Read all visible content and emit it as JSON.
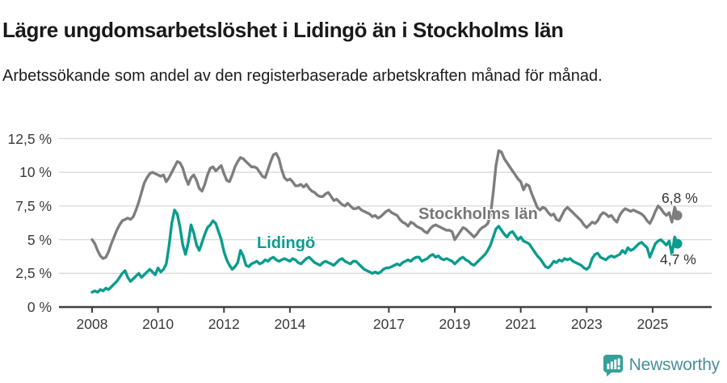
{
  "header": {
    "title": "Lägre ungdomsarbetslöshet i Lidingö än i Stockholms län",
    "subtitle": "Arbetssökande som andel av den registerbaserade arbetskraften månad för månad."
  },
  "branding": {
    "logo_text": "Newsworthy",
    "logo_icon": "bar-chart-speech-bubble",
    "icon_color": "#33a19a",
    "text_color": "#4a8e9c"
  },
  "chart_data": {
    "type": "line",
    "title": "Lägre ungdomsarbetslöshet i Lidingö än i Stockholms län",
    "xlabel": "",
    "ylabel": "",
    "grid": "horizontal",
    "legend_position": "inline-labels",
    "x_unit": "month",
    "x_start_year": 2008,
    "x_end": "2025-10",
    "ylim": [
      0,
      13.2
    ],
    "y_ticks": [
      {
        "label": "0 %",
        "value": 0
      },
      {
        "label": "2,5 %",
        "value": 2.5
      },
      {
        "label": "5 %",
        "value": 5
      },
      {
        "label": "7,5 %",
        "value": 7.5
      },
      {
        "label": "10 %",
        "value": 10
      },
      {
        "label": "12,5 %",
        "value": 12.5
      }
    ],
    "x_ticks": [
      {
        "label": "2008",
        "year": 2008
      },
      {
        "label": "2010",
        "year": 2010
      },
      {
        "label": "2012",
        "year": 2012
      },
      {
        "label": "2014",
        "year": 2014
      },
      {
        "label": "2017",
        "year": 2017
      },
      {
        "label": "2019",
        "year": 2019
      },
      {
        "label": "2021",
        "year": 2021
      },
      {
        "label": "2023",
        "year": 2023
      },
      {
        "label": "2025",
        "year": 2025
      }
    ],
    "gridline_color": "#d9d9d9",
    "axis_color": "#3f3f3f",
    "series": [
      {
        "name": "Stockholms län",
        "color": "#7d7e80",
        "end_label": "6,8 %",
        "end_value": 6.8,
        "values": [
          5.0,
          4.7,
          4.2,
          3.8,
          3.6,
          3.7,
          4.1,
          4.7,
          5.2,
          5.7,
          6.1,
          6.4,
          6.5,
          6.6,
          6.5,
          6.7,
          7.2,
          7.8,
          8.5,
          9.2,
          9.6,
          9.9,
          10.0,
          9.9,
          9.8,
          9.7,
          9.8,
          9.3,
          9.6,
          10.0,
          10.4,
          10.8,
          10.7,
          10.3,
          9.6,
          9.1,
          9.6,
          9.8,
          9.4,
          8.8,
          8.6,
          9.1,
          9.8,
          10.3,
          10.4,
          10.1,
          10.3,
          10.5,
          9.9,
          9.4,
          9.3,
          9.8,
          10.4,
          10.8,
          11.1,
          11.0,
          10.8,
          10.6,
          10.4,
          10.4,
          10.3,
          10.0,
          9.7,
          9.6,
          10.2,
          10.8,
          11.3,
          11.4,
          11.0,
          10.2,
          9.6,
          9.4,
          9.5,
          9.3,
          9.0,
          9.0,
          9.1,
          8.9,
          9.1,
          8.8,
          8.6,
          8.5,
          8.3,
          8.2,
          8.2,
          8.4,
          8.5,
          8.2,
          7.9,
          8.0,
          7.8,
          7.6,
          7.5,
          7.7,
          7.5,
          7.3,
          7.3,
          7.4,
          7.2,
          7.1,
          7.0,
          6.9,
          6.7,
          6.8,
          6.6,
          6.7,
          6.9,
          7.1,
          7.2,
          7.0,
          6.9,
          6.8,
          6.5,
          6.3,
          6.2,
          6.0,
          6.3,
          6.2,
          6.0,
          5.9,
          5.8,
          5.6,
          5.5,
          5.8,
          6.0,
          6.1,
          6.0,
          5.9,
          5.8,
          5.7,
          5.7,
          5.6,
          5.0,
          5.3,
          5.6,
          5.9,
          5.8,
          5.6,
          5.4,
          5.2,
          5.4,
          5.7,
          5.9,
          6.0,
          6.2,
          6.8,
          8.5,
          10.5,
          11.6,
          11.5,
          11.0,
          10.7,
          10.4,
          10.1,
          9.8,
          9.5,
          9.3,
          8.7,
          9.1,
          9.0,
          8.4,
          7.9,
          7.4,
          7.2,
          7.4,
          7.3,
          7.0,
          6.8,
          6.9,
          6.5,
          6.4,
          6.8,
          7.2,
          7.4,
          7.2,
          7.0,
          6.8,
          6.6,
          6.4,
          6.1,
          5.9,
          6.1,
          6.3,
          6.2,
          6.4,
          6.8,
          7.0,
          6.9,
          6.7,
          6.8,
          6.5,
          6.3,
          6.8,
          7.1,
          7.3,
          7.2,
          7.1,
          7.2,
          7.1,
          7.0,
          6.9,
          6.7,
          6.4,
          6.2,
          6.6,
          7.1,
          7.5,
          7.3,
          7.0,
          6.8,
          7.0,
          6.3,
          7.4,
          6.8
        ]
      },
      {
        "name": "Lidingö",
        "color": "#0a9c8d",
        "end_label": "4,7 %",
        "end_value": 4.7,
        "values": [
          1.1,
          1.2,
          1.1,
          1.3,
          1.2,
          1.4,
          1.3,
          1.5,
          1.7,
          1.9,
          2.2,
          2.5,
          2.7,
          2.2,
          1.9,
          2.1,
          2.3,
          2.5,
          2.2,
          2.4,
          2.6,
          2.8,
          2.6,
          2.4,
          2.9,
          2.6,
          2.8,
          3.2,
          4.5,
          6.2,
          7.2,
          6.9,
          5.9,
          4.6,
          3.9,
          4.8,
          6.1,
          5.5,
          4.6,
          4.2,
          4.8,
          5.4,
          5.9,
          6.1,
          6.4,
          6.2,
          5.6,
          5.0,
          4.1,
          3.5,
          3.1,
          2.8,
          3.0,
          3.3,
          4.2,
          3.8,
          3.1,
          3.0,
          3.2,
          3.3,
          3.4,
          3.2,
          3.3,
          3.5,
          3.4,
          3.6,
          3.7,
          3.5,
          3.4,
          3.5,
          3.6,
          3.5,
          3.4,
          3.6,
          3.5,
          3.3,
          3.2,
          3.4,
          3.6,
          3.7,
          3.5,
          3.3,
          3.2,
          3.1,
          3.3,
          3.4,
          3.3,
          3.2,
          3.1,
          3.3,
          3.5,
          3.6,
          3.4,
          3.3,
          3.2,
          3.4,
          3.4,
          3.2,
          3.0,
          2.8,
          2.7,
          2.6,
          2.5,
          2.6,
          2.5,
          2.6,
          2.8,
          2.9,
          2.9,
          3.0,
          3.1,
          3.2,
          3.1,
          3.3,
          3.4,
          3.5,
          3.4,
          3.6,
          3.7,
          3.7,
          3.4,
          3.5,
          3.6,
          3.8,
          3.9,
          3.7,
          3.8,
          3.6,
          3.5,
          3.6,
          3.5,
          3.4,
          3.2,
          3.4,
          3.6,
          3.7,
          3.5,
          3.4,
          3.2,
          3.1,
          3.3,
          3.5,
          3.7,
          3.9,
          4.2,
          4.6,
          5.2,
          5.8,
          6.0,
          5.7,
          5.4,
          5.2,
          5.5,
          5.6,
          5.3,
          5.0,
          5.2,
          4.9,
          4.8,
          4.7,
          4.4,
          4.1,
          3.8,
          3.6,
          3.3,
          3.0,
          2.9,
          3.1,
          3.4,
          3.3,
          3.5,
          3.4,
          3.6,
          3.5,
          3.6,
          3.4,
          3.3,
          3.2,
          3.1,
          2.9,
          2.8,
          3.0,
          3.6,
          3.9,
          4.0,
          3.7,
          3.6,
          3.5,
          3.7,
          3.8,
          3.7,
          3.8,
          3.9,
          4.2,
          4.0,
          4.4,
          4.2,
          4.3,
          4.5,
          4.7,
          4.8,
          4.6,
          4.4,
          3.7,
          4.2,
          4.7,
          4.9,
          5.0,
          4.8,
          4.6,
          4.9,
          3.9,
          5.2,
          4.7
        ]
      }
    ]
  }
}
